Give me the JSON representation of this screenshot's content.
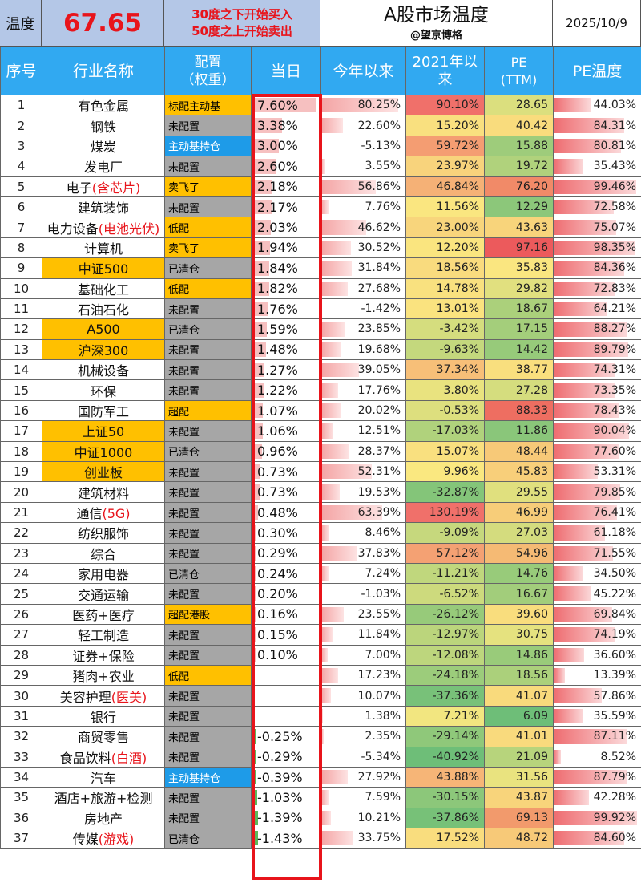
{
  "header": {
    "temp_label": "温度",
    "temp_value": "67.65",
    "rule_line1": "30度之下开始买入",
    "rule_line2": "50度之上开始卖出",
    "title": "A股市场温度",
    "author": "@望京博格",
    "date": "2025/10/9"
  },
  "columns": {
    "no": "序号",
    "name": "行业名称",
    "alloc_line1": "配置",
    "alloc_line2": "（权重）",
    "day": "当日",
    "ytd": "今年以来",
    "since_line1": "2021年以",
    "since_line2": "来",
    "pe_line1": "PE",
    "pe_line2": "(TTM)",
    "temp": "PE温度"
  },
  "colors": {
    "header_bg": "#31a9f1",
    "temp_value": "#e8141b",
    "highlight_name": "#ffc000",
    "alloc_orange": "#ffc000",
    "alloc_blue": "#1e9be8",
    "alloc_gray": "#a6a6a6",
    "frame_red": "#e8141b"
  },
  "rows": [
    {
      "no": "1",
      "name": "有色金属",
      "alloc": "标配主动基",
      "day": "7.60%",
      "ytd": "80.25%",
      "since": "90.10%",
      "pe": "28.65",
      "temp": "44.03%"
    },
    {
      "no": "2",
      "name": "钢铁",
      "alloc": "未配置",
      "day": "3.38%",
      "ytd": "22.60%",
      "since": "15.20%",
      "pe": "40.42",
      "temp": "84.31%"
    },
    {
      "no": "3",
      "name": "煤炭",
      "alloc": "主动基持仓",
      "day": "3.00%",
      "ytd": "-5.13%",
      "since": "59.72%",
      "pe": "15.88",
      "temp": "80.81%"
    },
    {
      "no": "4",
      "name": "发电厂",
      "alloc": "未配置",
      "day": "2.60%",
      "ytd": "3.55%",
      "since": "23.97%",
      "pe": "19.72",
      "temp": "35.43%"
    },
    {
      "no": "5",
      "name": "电子",
      "name_red": "(含芯片)",
      "alloc": "卖飞了",
      "day": "2.18%",
      "ytd": "56.86%",
      "since": "46.84%",
      "pe": "76.20",
      "temp": "99.46%"
    },
    {
      "no": "6",
      "name": "建筑装饰",
      "alloc": "未配置",
      "day": "2.17%",
      "ytd": "7.76%",
      "since": "11.56%",
      "pe": "12.29",
      "temp": "72.58%"
    },
    {
      "no": "7",
      "name": "电力设备",
      "name_red": "(电池光伏)",
      "alloc": "低配",
      "day": "2.03%",
      "ytd": "46.62%",
      "since": "23.00%",
      "pe": "43.63",
      "temp": "75.07%"
    },
    {
      "no": "8",
      "name": "计算机",
      "alloc": "卖飞了",
      "day": "1.94%",
      "ytd": "30.52%",
      "since": "12.20%",
      "pe": "97.16",
      "temp": "98.35%"
    },
    {
      "no": "9",
      "name": "中证500",
      "alloc": "已清仓",
      "day": "1.84%",
      "ytd": "31.84%",
      "since": "18.56%",
      "pe": "35.83",
      "temp": "84.36%"
    },
    {
      "no": "10",
      "name": "基础化工",
      "alloc": "低配",
      "day": "1.82%",
      "ytd": "27.68%",
      "since": "14.78%",
      "pe": "29.82",
      "temp": "72.83%"
    },
    {
      "no": "11",
      "name": "石油石化",
      "alloc": "未配置",
      "day": "1.76%",
      "ytd": "-1.42%",
      "since": "13.01%",
      "pe": "18.67",
      "temp": "64.21%"
    },
    {
      "no": "12",
      "name": "A500",
      "alloc": "已清仓",
      "day": "1.59%",
      "ytd": "23.85%",
      "since": "-3.42%",
      "pe": "17.15",
      "temp": "88.27%"
    },
    {
      "no": "13",
      "name": "沪深300",
      "alloc": "未配置",
      "day": "1.48%",
      "ytd": "19.68%",
      "since": "-9.63%",
      "pe": "14.42",
      "temp": "89.79%"
    },
    {
      "no": "14",
      "name": "机械设备",
      "alloc": "未配置",
      "day": "1.27%",
      "ytd": "39.05%",
      "since": "37.34%",
      "pe": "38.77",
      "temp": "74.31%"
    },
    {
      "no": "15",
      "name": "环保",
      "alloc": "未配置",
      "day": "1.22%",
      "ytd": "17.76%",
      "since": "3.80%",
      "pe": "27.28",
      "temp": "73.35%"
    },
    {
      "no": "16",
      "name": "国防军工",
      "alloc": "超配",
      "day": "1.07%",
      "ytd": "20.02%",
      "since": "-0.53%",
      "pe": "88.33",
      "temp": "78.43%"
    },
    {
      "no": "17",
      "name": "上证50",
      "alloc": "未配置",
      "day": "1.06%",
      "ytd": "12.51%",
      "since": "-17.03%",
      "pe": "11.86",
      "temp": "90.04%"
    },
    {
      "no": "18",
      "name": "中证1000",
      "alloc": "已清仓",
      "day": "0.96%",
      "ytd": "28.37%",
      "since": "15.07%",
      "pe": "48.44",
      "temp": "77.60%"
    },
    {
      "no": "19",
      "name": "创业板",
      "alloc": "未配置",
      "day": "0.73%",
      "ytd": "52.31%",
      "since": "9.96%",
      "pe": "45.83",
      "temp": "53.31%"
    },
    {
      "no": "20",
      "name": "建筑材料",
      "alloc": "未配置",
      "day": "0.73%",
      "ytd": "19.53%",
      "since": "-32.87%",
      "pe": "29.55",
      "temp": "79.85%"
    },
    {
      "no": "21",
      "name": "通信",
      "name_red": "(5G)",
      "alloc": "未配置",
      "day": "0.48%",
      "ytd": "63.39%",
      "since": "130.19%",
      "pe": "46.99",
      "temp": "76.41%"
    },
    {
      "no": "22",
      "name": "纺织服饰",
      "alloc": "未配置",
      "day": "0.30%",
      "ytd": "8.46%",
      "since": "-9.09%",
      "pe": "27.03",
      "temp": "61.18%"
    },
    {
      "no": "23",
      "name": "综合",
      "alloc": "未配置",
      "day": "0.29%",
      "ytd": "37.83%",
      "since": "57.12%",
      "pe": "54.96",
      "temp": "71.55%"
    },
    {
      "no": "24",
      "name": "家用电器",
      "alloc": "已清仓",
      "day": "0.24%",
      "ytd": "7.24%",
      "since": "-11.21%",
      "pe": "14.76",
      "temp": "34.50%"
    },
    {
      "no": "25",
      "name": "交通运输",
      "alloc": "未配置",
      "day": "0.20%",
      "ytd": "-1.03%",
      "since": "-6.52%",
      "pe": "16.67",
      "temp": "45.22%"
    },
    {
      "no": "26",
      "name": "医药+医疗",
      "alloc": "超配港股",
      "day": "0.16%",
      "ytd": "23.55%",
      "since": "-26.12%",
      "pe": "39.60",
      "temp": "69.84%"
    },
    {
      "no": "27",
      "name": "轻工制造",
      "alloc": "未配置",
      "day": "0.15%",
      "ytd": "11.84%",
      "since": "-12.97%",
      "pe": "30.75",
      "temp": "74.19%"
    },
    {
      "no": "28",
      "name": "证券+保险",
      "alloc": "未配置",
      "day": "0.10%",
      "ytd": "7.00%",
      "since": "-12.08%",
      "pe": "14.86",
      "temp": "36.60%"
    },
    {
      "no": "29",
      "name": "猪肉+农业",
      "alloc": "低配",
      "day": "",
      "ytd": "17.23%",
      "since": "-24.18%",
      "pe": "18.56",
      "temp": "13.39%"
    },
    {
      "no": "30",
      "name": "美容护理",
      "name_red": "(医美)",
      "alloc": "未配置",
      "day": "",
      "ytd": "10.07%",
      "since": "-37.36%",
      "pe": "41.07",
      "temp": "57.86%"
    },
    {
      "no": "31",
      "name": "银行",
      "alloc": "未配置",
      "day": "",
      "ytd": "1.38%",
      "since": "7.21%",
      "pe": "6.09",
      "temp": "35.59%"
    },
    {
      "no": "32",
      "name": "商贸零售",
      "alloc": "未配置",
      "day": "-0.25%",
      "ytd": "2.35%",
      "since": "-29.14%",
      "pe": "41.01",
      "temp": "87.11%"
    },
    {
      "no": "33",
      "name": "食品饮料",
      "name_red": "(白酒)",
      "alloc": "未配置",
      "day": "-0.29%",
      "ytd": "-5.34%",
      "since": "-40.92%",
      "pe": "21.09",
      "temp": "8.52%"
    },
    {
      "no": "34",
      "name": "汽车",
      "alloc": "主动基持仓",
      "day": "-0.39%",
      "ytd": "27.92%",
      "since": "43.88%",
      "pe": "31.56",
      "temp": "87.79%"
    },
    {
      "no": "35",
      "name": "酒店+旅游+检测",
      "alloc": "未配置",
      "day": "-1.03%",
      "ytd": "7.59%",
      "since": "-30.15%",
      "pe": "43.87",
      "temp": "42.28%"
    },
    {
      "no": "36",
      "name": "房地产",
      "alloc": "未配置",
      "day": "-1.39%",
      "ytd": "10.21%",
      "since": "-37.86%",
      "pe": "69.13",
      "temp": "99.92%"
    },
    {
      "no": "37",
      "name": "传媒",
      "name_red": "(游戏)",
      "alloc": "已清仓",
      "day": "-1.43%",
      "ytd": "33.75%",
      "since": "17.52%",
      "pe": "48.72",
      "temp": "84.60%"
    }
  ]
}
